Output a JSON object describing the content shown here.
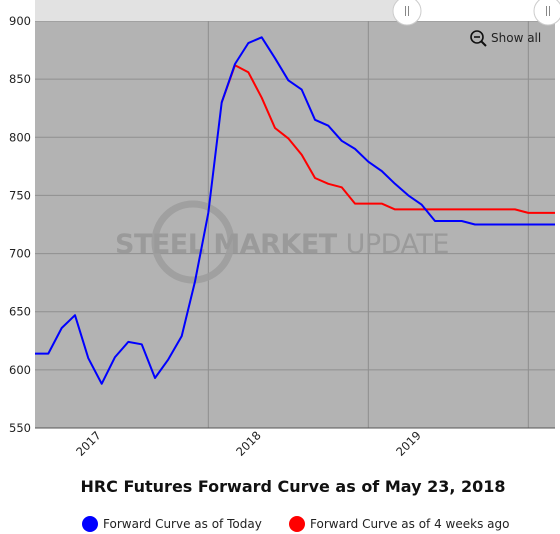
{
  "chart_data": {
    "type": "line",
    "title": "HRC Futures Forward Curve as of May 23, 2018",
    "xlabel": "",
    "ylabel": "",
    "ylim": [
      550,
      900
    ],
    "yticks": [
      550,
      600,
      650,
      700,
      750,
      800,
      850,
      900
    ],
    "x_tick_labels": [
      {
        "label": "2017",
        "index": 5
      },
      {
        "label": "2018",
        "index": 17
      },
      {
        "label": "2019",
        "index": 29
      }
    ],
    "grid": true,
    "legend": "bottom",
    "series": [
      {
        "name": "Forward Curve as of Today",
        "color": "#0000ff",
        "values": [
          614,
          614,
          636,
          647,
          610,
          588,
          611,
          624,
          622,
          593,
          609,
          629,
          676,
          735,
          830,
          863,
          881,
          886,
          868,
          849,
          841,
          815,
          810,
          797,
          790,
          779,
          771,
          760,
          750,
          742,
          728,
          728,
          728,
          725,
          725,
          725,
          725,
          725,
          725,
          725
        ]
      },
      {
        "name": "Forward Curve as of 4 weeks ago",
        "color": "#ff0000",
        "start_index": 14,
        "values": [
          830,
          862,
          856,
          834,
          808,
          799,
          785,
          765,
          760,
          757,
          743,
          743,
          743,
          738,
          738,
          738,
          738,
          738,
          738,
          738,
          738,
          738,
          738,
          735,
          735,
          735
        ]
      }
    ],
    "watermark": "STEEL MARKET UPDATE",
    "zoom_button": "Show all",
    "plot_background": "#b3b3b3"
  }
}
